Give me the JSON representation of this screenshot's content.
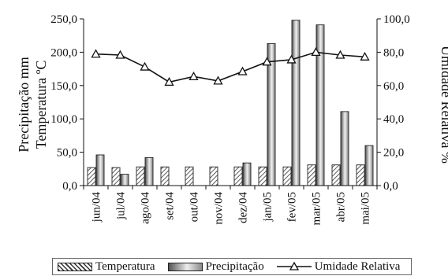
{
  "chart_data": {
    "type": "bar",
    "categories": [
      "jun/04",
      "jul/04",
      "ago/04",
      "set/04",
      "out/04",
      "nov/04",
      "dez/04",
      "jan/05",
      "fev/05",
      "mar/05",
      "abr/05",
      "mai/05"
    ],
    "series": [
      {
        "name": "Temperatura",
        "type": "bar",
        "axis": "left",
        "values": [
          27,
          27,
          28,
          28,
          28,
          28,
          28,
          28,
          28,
          31,
          31,
          31
        ]
      },
      {
        "name": "Precipitação",
        "type": "bar",
        "axis": "left",
        "values": [
          46,
          17,
          42,
          0,
          0,
          0,
          34,
          213,
          248,
          241,
          111,
          60
        ]
      },
      {
        "name": "Umidade Relativa",
        "type": "line",
        "axis": "right",
        "values": [
          78.9,
          78.3,
          71.2,
          62.1,
          65.4,
          62.8,
          68.4,
          74.2,
          75.5,
          80.0,
          78.3,
          77.2
        ]
      }
    ],
    "ylabel_left_lines": [
      "Precipitação mm",
      "Temperatura ºC"
    ],
    "ylabel_right": "Umidade Relativa %",
    "ylim_left": [
      0,
      250
    ],
    "ylim_right": [
      0,
      100
    ],
    "yticks_left": [
      "0,0",
      "50,0",
      "100,0",
      "150,0",
      "200,0",
      "250,0"
    ],
    "yticks_right": [
      "0,0",
      "20,0",
      "40,0",
      "60,0",
      "80,0",
      "100,0"
    ],
    "grid": false,
    "legend_position": "bottom"
  },
  "legend": {
    "temperatura": "Temperatura",
    "precipitacao": "Precipitação",
    "umidade": "Umidade Relativa"
  },
  "colors": {
    "axis": "#111111",
    "line": "#111111"
  }
}
